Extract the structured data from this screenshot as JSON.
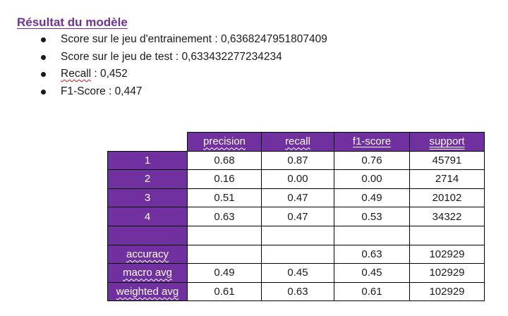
{
  "title": "Résultat du modèle",
  "metrics": [
    {
      "label": "Score sur le jeu d'entrainement : ",
      "value": " 0,6368247951807409"
    },
    {
      "label": "Score sur le jeu de test : ",
      "value": " 0,633432277234234"
    },
    {
      "label": "Recall",
      "value": " : 0,452"
    },
    {
      "label": "F1-Score",
      "value": " : 0,447"
    }
  ],
  "report": {
    "columns": [
      "precision",
      "recall",
      "f1-score",
      "support"
    ],
    "rows": [
      {
        "label": "1",
        "values": [
          "0.68",
          "0.87",
          "0.76",
          "45791"
        ]
      },
      {
        "label": "2",
        "values": [
          "0.16",
          "0.00",
          "0.00",
          "2714"
        ]
      },
      {
        "label": "3",
        "values": [
          "0.51",
          "0.47",
          "0.49",
          "20102"
        ]
      },
      {
        "label": "4",
        "values": [
          "0.63",
          "0.47",
          "0.53",
          "34322"
        ]
      },
      {
        "label": "",
        "values": [
          "",
          "",
          "",
          ""
        ]
      },
      {
        "label": "accuracy",
        "values": [
          "",
          "",
          "0.63",
          "102929"
        ]
      },
      {
        "label": "macro avg",
        "values": [
          "0.49",
          "0.45",
          "0.45",
          "102929"
        ]
      },
      {
        "label": "weighted avg",
        "values": [
          "0.61",
          "0.63",
          "0.61",
          "102929"
        ]
      }
    ]
  }
}
